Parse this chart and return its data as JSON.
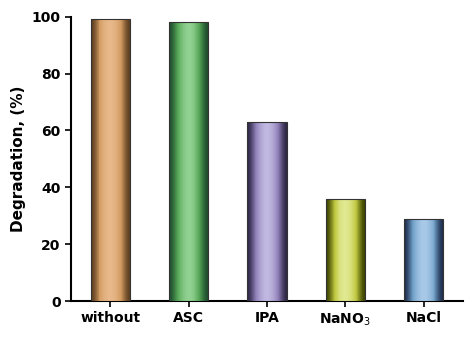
{
  "categories": [
    "without",
    "ASC",
    "IPA",
    "NaNO$_3$",
    "NaCl"
  ],
  "values": [
    99,
    98,
    63,
    36,
    29
  ],
  "bar_colors_center": [
    "#E8B88A",
    "#90D090",
    "#C0B8E0",
    "#E0E890",
    "#A8C8E8"
  ],
  "bar_colors_mid": [
    "#D09A60",
    "#58A858",
    "#9080B8",
    "#C0C840",
    "#70A0C8"
  ],
  "bar_colors_edge": [
    "#604020",
    "#205030",
    "#302848",
    "#404800",
    "#203050"
  ],
  "ylabel": "Degradation, (%)",
  "ylim": [
    0,
    100
  ],
  "yticks": [
    0,
    20,
    40,
    60,
    80,
    100
  ],
  "ylabel_fontsize": 11,
  "tick_fontsize": 10,
  "bar_width": 0.5,
  "background_color": "#ffffff",
  "n_gradient_slices": 40
}
